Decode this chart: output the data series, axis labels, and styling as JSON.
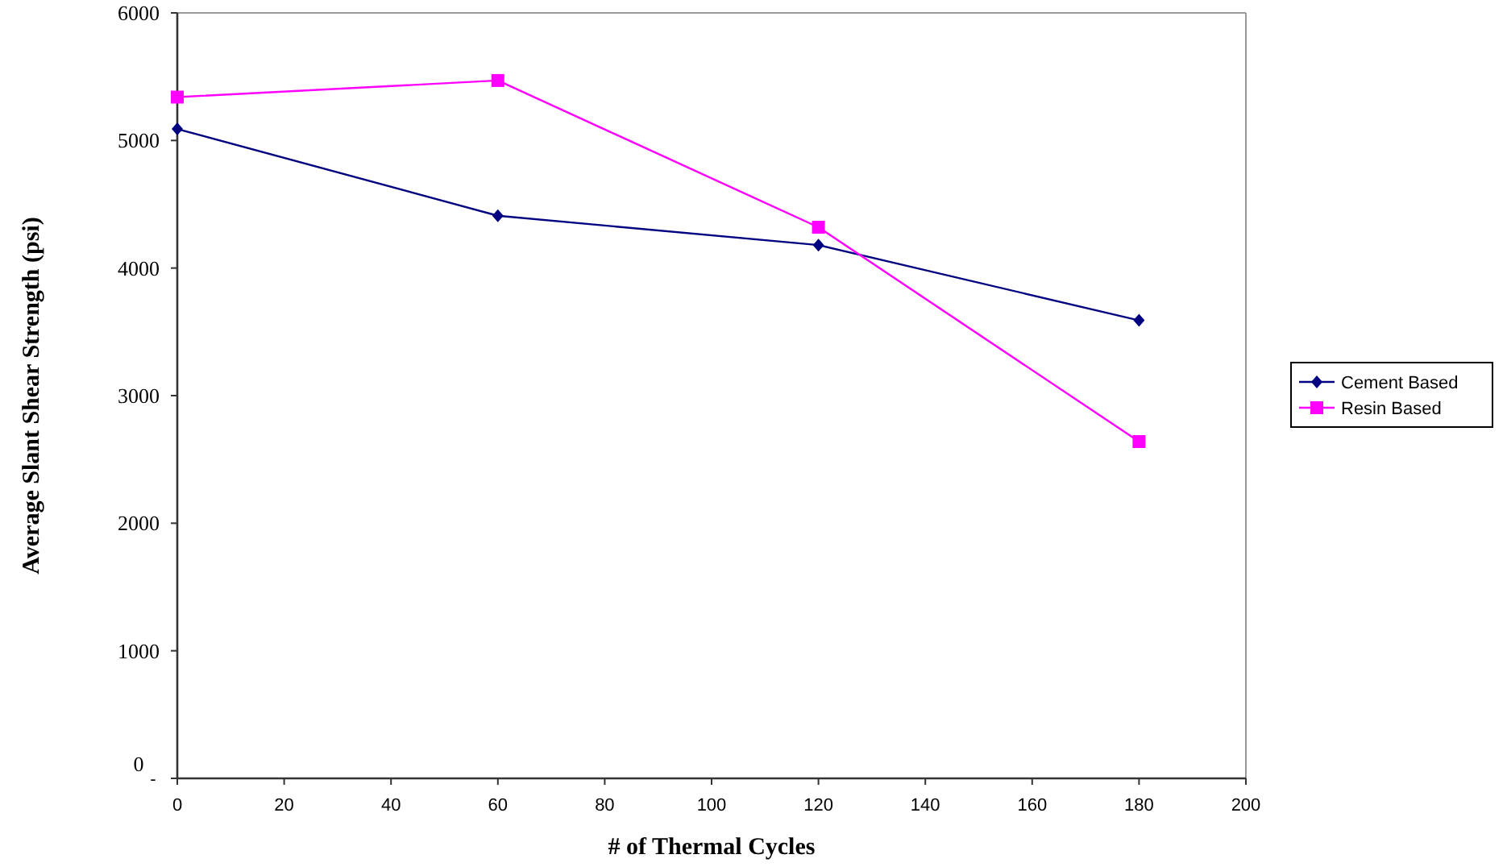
{
  "chart_data": {
    "type": "line",
    "xlabel": "# of Thermal Cycles",
    "ylabel": "Average Slant Shear Strength (psi)",
    "x": [
      0,
      60,
      120,
      180
    ],
    "series": [
      {
        "name": "Cement Based",
        "color": "#000080",
        "marker": "diamond",
        "values": [
          5090,
          4410,
          4180,
          3590
        ]
      },
      {
        "name": "Resin Based",
        "color": "#ff00ff",
        "marker": "square",
        "values": [
          5340,
          5470,
          4320,
          2640
        ]
      }
    ],
    "xlim": [
      0,
      200
    ],
    "xticks": [
      0,
      20,
      40,
      60,
      80,
      100,
      120,
      140,
      160,
      180,
      200
    ],
    "ylim": [
      0,
      6000
    ],
    "yticks": [
      0,
      1000,
      2000,
      3000,
      4000,
      5000,
      6000
    ],
    "annotations": [
      "-"
    ],
    "grid": false,
    "legend": "right"
  }
}
